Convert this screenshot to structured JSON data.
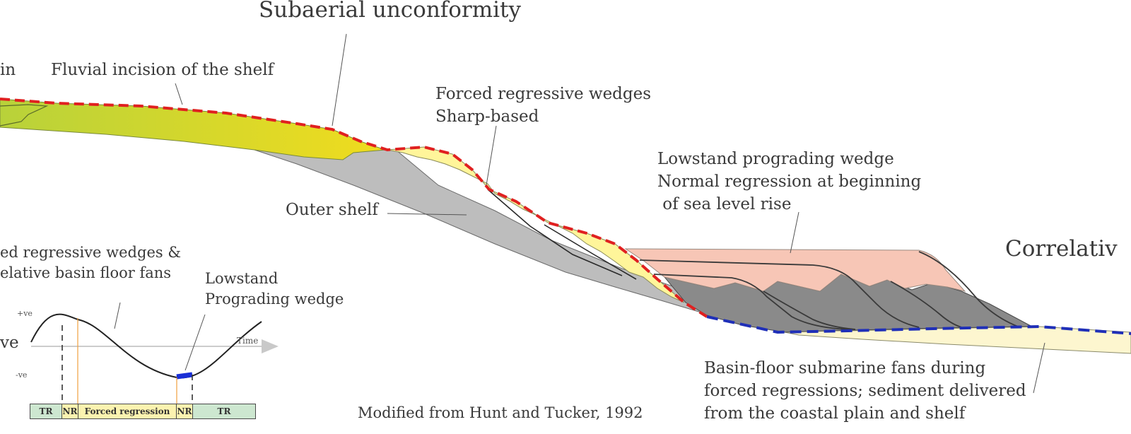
{
  "colors": {
    "fluvial_start": "#b8d23a",
    "fluvial_end": "#f0dc1e",
    "forced_wedge": "#fff59a",
    "outer_shelf": "#bdbdbd",
    "lowstand_wedge": "#f7c6b6",
    "dark_wedge": "#8a8a8a",
    "basin_fan": "#fdf6cf",
    "subaerial_line": "#e02020",
    "correlative_line": "#1f2fb8",
    "tr_fill": "#cde7d0",
    "regression_fill": "#fbf3b0",
    "nr_marker": "#f0a040",
    "lowstand_marker": "#1a2fd6"
  },
  "labels": {
    "subaerial_unconformity": "Subaerial unconformity",
    "fragment_in": "in",
    "fluvial_incision": "Fluvial incision of the shelf",
    "forced_regressive_1": "Forced regressive wedges",
    "forced_regressive_2": "Sharp-based",
    "lowstand_1": "Lowstand prograding wedge",
    "lowstand_2": "Normal regression at beginning",
    "lowstand_3": " of sea level rise",
    "outer_shelf": "Outer shelf",
    "correlative": "Correlativ",
    "forced_fans_1": "ed regressive wedges &",
    "forced_fans_2": "elative basin floor fans",
    "lowstand_small_1": "Lowstand",
    "lowstand_small_2": "Prograding wedge",
    "basin_floor_1": "Basin-floor submarine fans during",
    "basin_floor_2": "forced regressions; sediment delivered",
    "basin_floor_3": "from the coastal plain and shelf",
    "credit": "Modified from Hunt and Tucker, 1992"
  },
  "inset": {
    "axis_pos": "+ve",
    "axis_neg": "-ve",
    "axis_fragment": "ve",
    "time_label": "Time",
    "stages": [
      "TR",
      "NR",
      "Forced regression",
      "NR",
      "TR"
    ]
  }
}
